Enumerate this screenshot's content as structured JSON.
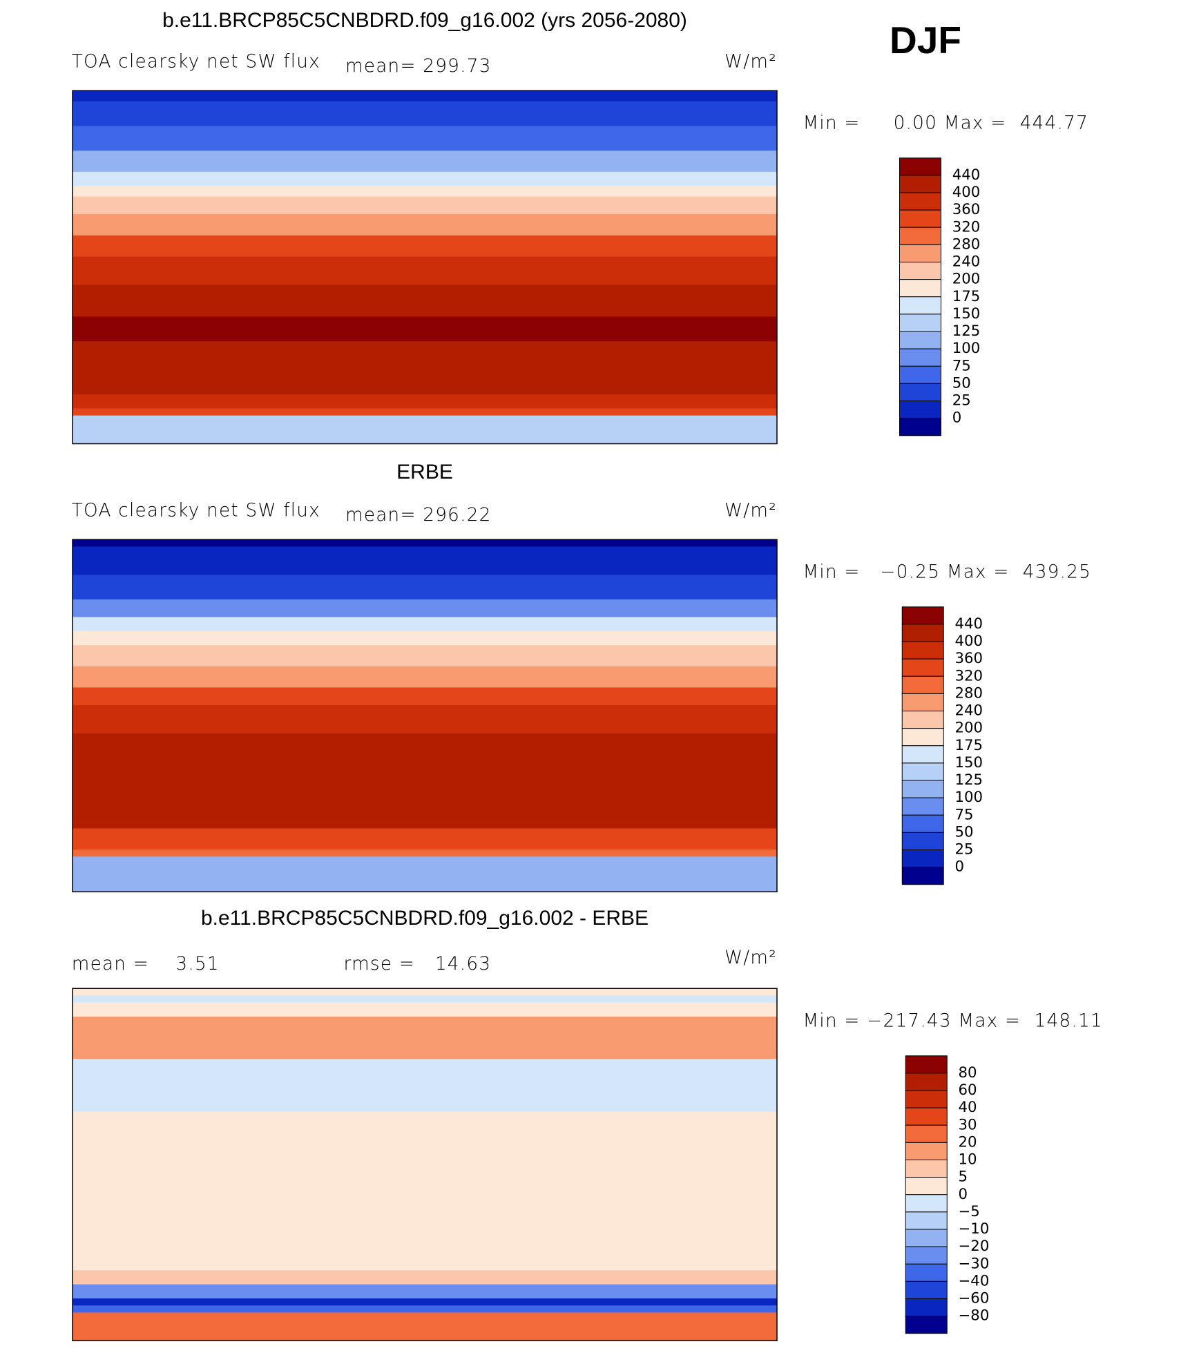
{
  "figure": {
    "season": "DJF",
    "panels": [
      {
        "title": "b.e11.BRCP85C5CNBDRD.f09_g16.002 (yrs 2056-2080)",
        "subtitle": "TOA clearsky net SW flux",
        "mean": "mean= 299.73",
        "units": "W/m²",
        "range": "Min =     0.00 Max =  444.77",
        "colorbar": {
          "labels": [
            "440",
            "400",
            "360",
            "320",
            "280",
            "240",
            "200",
            "175",
            "150",
            "125",
            "100",
            "75",
            "50",
            "25",
            "0"
          ],
          "colors": [
            "#8b0000",
            "#b21e00",
            "#cc2e0a",
            "#e4461a",
            "#f26a3a",
            "#f89a70",
            "#fcc6aa",
            "#fde8d8",
            "#d4e6fa",
            "#b6d0f6",
            "#92b2f2",
            "#6a8ef0",
            "#3e66e8",
            "#1e44d8",
            "#0a26c0",
            "#00008e"
          ]
        }
      },
      {
        "title": "ERBE",
        "subtitle": "TOA clearsky net SW flux",
        "mean": "mean= 296.22",
        "units": "W/m²",
        "range": "Min =   −0.25 Max =  439.25",
        "colorbar": {
          "labels": [
            "440",
            "400",
            "360",
            "320",
            "280",
            "240",
            "200",
            "175",
            "150",
            "125",
            "100",
            "75",
            "50",
            "25",
            "0"
          ],
          "colors": [
            "#8b0000",
            "#b21e00",
            "#cc2e0a",
            "#e4461a",
            "#f26a3a",
            "#f89a70",
            "#fcc6aa",
            "#fde8d8",
            "#d4e6fa",
            "#b6d0f6",
            "#92b2f2",
            "#6a8ef0",
            "#3e66e8",
            "#1e44d8",
            "#0a26c0",
            "#00008e"
          ]
        }
      },
      {
        "title": "b.e11.BRCP85C5CNBDRD.f09_g16.002 - ERBE",
        "mean": "mean =    3.51",
        "rmse": "rmse =   14.63",
        "units": "W/m²",
        "range": "Min = −217.43 Max =  148.11",
        "colorbar": {
          "labels": [
            "80",
            "60",
            "40",
            "30",
            "20",
            "10",
            "5",
            "0",
            "−5",
            "−10",
            "−20",
            "−30",
            "−40",
            "−60",
            "−80"
          ],
          "colors": [
            "#8b0000",
            "#b21e00",
            "#cc2e0a",
            "#e4461a",
            "#f26a3a",
            "#f89a70",
            "#fcc6aa",
            "#fde8d8",
            "#d4e6fa",
            "#b6d0f6",
            "#92b2f2",
            "#6a8ef0",
            "#3e66e8",
            "#1e44d8",
            "#0a26c0",
            "#00008e"
          ]
        }
      }
    ]
  }
}
